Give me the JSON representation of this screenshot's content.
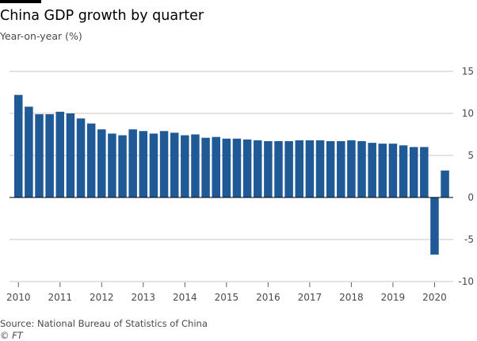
{
  "header": {
    "title": "China GDP growth by quarter",
    "subtitle": "Year-on-year (%)"
  },
  "footer": {
    "source": "Source: National Bureau of Statistics of China",
    "credit": "© FT"
  },
  "colors": {
    "bar": "#1f5a96",
    "grid": "#ccc6c1",
    "zero_line": "#000000",
    "text": "#4d4845"
  },
  "chart_data": {
    "type": "bar",
    "title": "China GDP growth by quarter",
    "ylabel": "Year-on-year (%)",
    "ylim": [
      -10,
      15
    ],
    "yticks": [
      15,
      10,
      5,
      0,
      -5,
      -10
    ],
    "y_axis_side": "right",
    "grid": true,
    "legend": "none",
    "x_tick_labels": [
      "2010",
      "2011",
      "2012",
      "2013",
      "2014",
      "2015",
      "2016",
      "2017",
      "2018",
      "2019",
      "2020"
    ],
    "categories": [
      "2010 Q1",
      "2010 Q2",
      "2010 Q3",
      "2010 Q4",
      "2011 Q1",
      "2011 Q2",
      "2011 Q3",
      "2011 Q4",
      "2012 Q1",
      "2012 Q2",
      "2012 Q3",
      "2012 Q4",
      "2013 Q1",
      "2013 Q2",
      "2013 Q3",
      "2013 Q4",
      "2014 Q1",
      "2014 Q2",
      "2014 Q3",
      "2014 Q4",
      "2015 Q1",
      "2015 Q2",
      "2015 Q3",
      "2015 Q4",
      "2016 Q1",
      "2016 Q2",
      "2016 Q3",
      "2016 Q4",
      "2017 Q1",
      "2017 Q2",
      "2017 Q3",
      "2017 Q4",
      "2018 Q1",
      "2018 Q2",
      "2018 Q3",
      "2018 Q4",
      "2019 Q1",
      "2019 Q2",
      "2019 Q3",
      "2019 Q4",
      "2020 Q1",
      "2020 Q2"
    ],
    "values": [
      12.2,
      10.8,
      9.9,
      9.9,
      10.2,
      10.0,
      9.4,
      8.8,
      8.1,
      7.6,
      7.4,
      8.1,
      7.9,
      7.6,
      7.9,
      7.7,
      7.4,
      7.5,
      7.1,
      7.2,
      7.0,
      7.0,
      6.9,
      6.8,
      6.7,
      6.7,
      6.7,
      6.8,
      6.8,
      6.8,
      6.7,
      6.7,
      6.8,
      6.7,
      6.5,
      6.4,
      6.4,
      6.2,
      6.0,
      6.0,
      -6.8,
      3.2
    ]
  }
}
